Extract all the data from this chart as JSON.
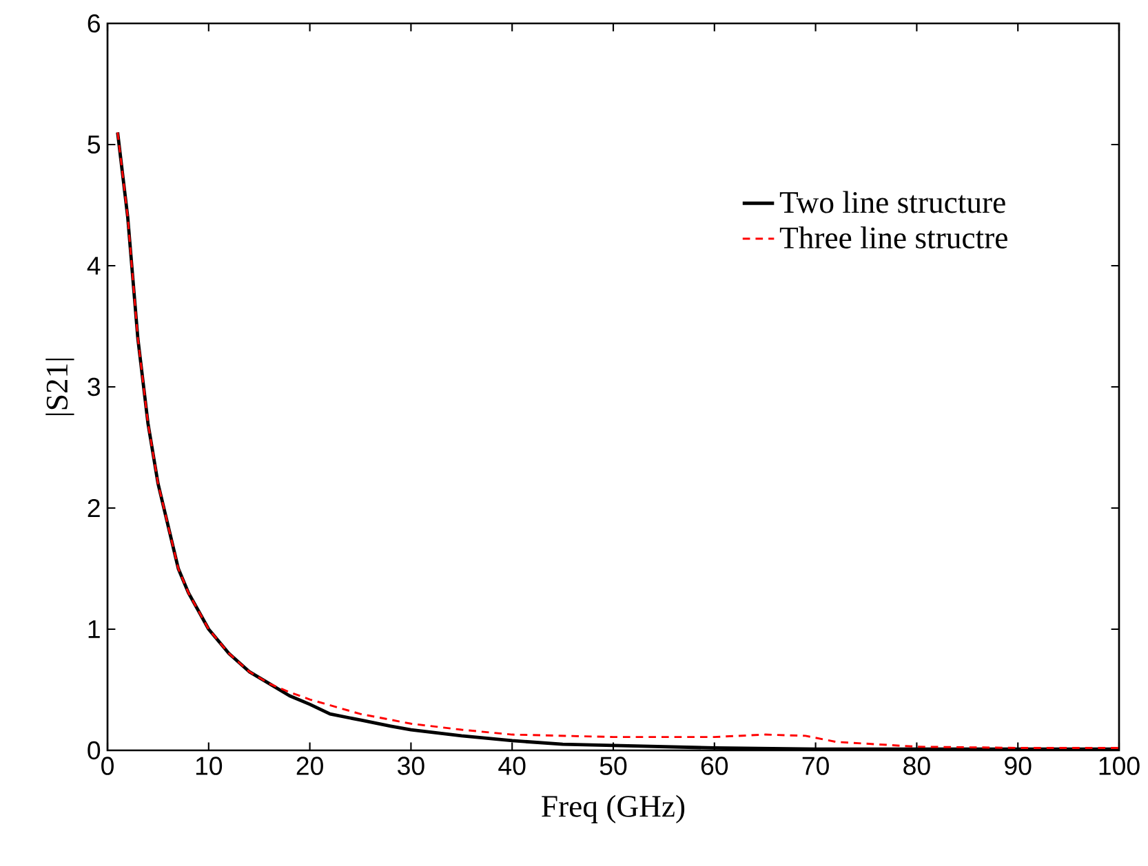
{
  "chart_data": {
    "type": "line",
    "xlabel": "Freq (GHz)",
    "ylabel": "|S21|",
    "xlim": [
      0,
      100
    ],
    "ylim": [
      0,
      6
    ],
    "xticks": [
      0,
      10,
      20,
      30,
      40,
      50,
      60,
      70,
      80,
      90,
      100
    ],
    "yticks": [
      0,
      1,
      2,
      3,
      4,
      5,
      6
    ],
    "grid": false,
    "legend": "top right",
    "marker": "none",
    "series": [
      {
        "name": "Two line structure",
        "color": "#000000",
        "line_style": "solid",
        "x": [
          1,
          2,
          3,
          4,
          5,
          6,
          7,
          8,
          10,
          12,
          14,
          16,
          18,
          20,
          22,
          25,
          28,
          30,
          35,
          40,
          45,
          50,
          60,
          70,
          80,
          90,
          100
        ],
        "values": [
          5.1,
          4.4,
          3.4,
          2.7,
          2.2,
          1.85,
          1.5,
          1.3,
          1.0,
          0.8,
          0.65,
          0.55,
          0.45,
          0.38,
          0.3,
          0.25,
          0.2,
          0.17,
          0.12,
          0.08,
          0.05,
          0.04,
          0.02,
          0.01,
          0.01,
          0.01,
          0.01
        ]
      },
      {
        "name": "Three line structre",
        "color": "#ff0000",
        "line_style": "dashed",
        "x": [
          1,
          2,
          3,
          4,
          5,
          6,
          7,
          8,
          10,
          12,
          14,
          16,
          18,
          20,
          25,
          30,
          35,
          40,
          50,
          60,
          65,
          69,
          72,
          80,
          90,
          100
        ],
        "values": [
          5.1,
          4.4,
          3.4,
          2.7,
          2.2,
          1.85,
          1.5,
          1.3,
          1.0,
          0.8,
          0.65,
          0.55,
          0.48,
          0.42,
          0.3,
          0.22,
          0.17,
          0.13,
          0.11,
          0.11,
          0.13,
          0.12,
          0.07,
          0.03,
          0.02,
          0.02
        ]
      }
    ]
  }
}
